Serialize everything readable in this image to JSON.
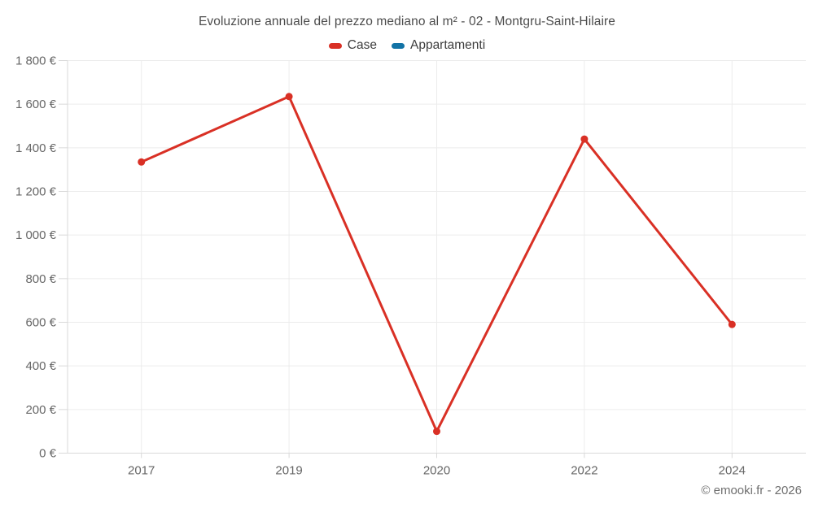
{
  "chart_data": {
    "type": "line",
    "title": "Evoluzione annuale del prezzo mediano al m² - 02 - Montgru-Saint-Hilaire",
    "categories": [
      "2017",
      "2019",
      "2020",
      "2022",
      "2024"
    ],
    "series": [
      {
        "name": "Case",
        "color": "#d93025",
        "values": [
          1335,
          1635,
          100,
          1440,
          590
        ]
      },
      {
        "name": "Appartamenti",
        "color": "#1273a6",
        "values": []
      }
    ],
    "xlabel": "",
    "ylabel": "",
    "ylim": [
      0,
      1800
    ],
    "y_tick_values": [
      0,
      200,
      400,
      600,
      800,
      1000,
      1200,
      1400,
      1600,
      1800
    ],
    "y_tick_labels": [
      "0 €",
      "200 €",
      "400 €",
      "600 €",
      "800 €",
      "1 000 €",
      "1 200 €",
      "1 400 €",
      "1 600 €",
      "1 800 €"
    ],
    "grid": true,
    "legend_position": "top"
  },
  "footer": {
    "text": "© emooki.fr - 2026"
  },
  "colors": {
    "gridline": "#ececec",
    "axis": "#d9d9d9",
    "tick": "#d9d9d9",
    "tick_label": "#666666",
    "title": "#4c4c4c",
    "legend_label": "#3d3d3d",
    "footer": "#6f6f6f"
  }
}
